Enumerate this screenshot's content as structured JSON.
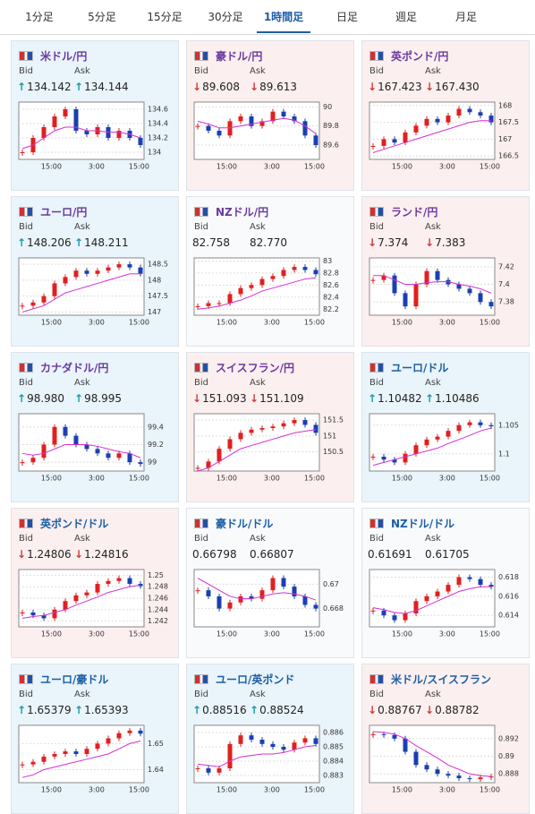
{
  "tabs": {
    "items": [
      "1分足",
      "5分足",
      "15分足",
      "30分足",
      "1時間足",
      "日足",
      "週足",
      "月足"
    ],
    "active": 4
  },
  "labels": {
    "bid": "Bid",
    "ask": "Ask"
  },
  "cards": [
    {
      "name": "米ドル/円",
      "title_color": "#6a3aa0",
      "direction": "up",
      "bid": "134.142",
      "ask": "134.144",
      "ylim": [
        133.9,
        134.7
      ],
      "yticks": [
        134,
        134.2,
        134.4,
        134.6
      ],
      "xticks": [
        "15:00",
        "3:00",
        "15:00"
      ],
      "closes": [
        134.0,
        134.2,
        134.35,
        134.5,
        134.6,
        134.3,
        134.25,
        134.35,
        134.2,
        134.3,
        134.2,
        134.1
      ],
      "ma": [
        134.05,
        134.1,
        134.2,
        134.3,
        134.35,
        134.35,
        134.3,
        134.3,
        134.28,
        134.28,
        134.25,
        134.2
      ]
    },
    {
      "name": "豪ドル/円",
      "title_color": "#6a3aa0",
      "direction": "down",
      "bid": "89.608",
      "ask": "89.613",
      "ylim": [
        89.45,
        90.05
      ],
      "yticks": [
        89.6,
        89.8,
        90
      ],
      "xticks": [
        "15:00",
        "3:00",
        "15:00"
      ],
      "closes": [
        89.8,
        89.75,
        89.7,
        89.85,
        89.9,
        89.8,
        89.85,
        89.95,
        89.9,
        89.85,
        89.7,
        89.6
      ],
      "ma": [
        89.85,
        89.82,
        89.78,
        89.78,
        89.8,
        89.82,
        89.84,
        89.86,
        89.88,
        89.86,
        89.8,
        89.72
      ]
    },
    {
      "name": "英ポンド/円",
      "title_color": "#6a3aa0",
      "direction": "down",
      "bid": "167.423",
      "ask": "167.430",
      "ylim": [
        166.4,
        168.1
      ],
      "yticks": [
        166.5,
        167,
        167.5,
        168
      ],
      "xticks": [
        "15:00",
        "3:00",
        "15:00"
      ],
      "closes": [
        166.8,
        167.0,
        166.9,
        167.2,
        167.4,
        167.6,
        167.5,
        167.7,
        167.9,
        167.8,
        167.7,
        167.5
      ],
      "ma": [
        166.6,
        166.7,
        166.8,
        166.9,
        167.0,
        167.1,
        167.2,
        167.3,
        167.4,
        167.5,
        167.55,
        167.55
      ]
    },
    {
      "name": "ユーロ/円",
      "title_color": "#6a3aa0",
      "direction": "up",
      "bid": "148.206",
      "ask": "148.211",
      "ylim": [
        146.9,
        148.7
      ],
      "yticks": [
        147,
        147.5,
        148,
        148.5
      ],
      "xticks": [
        "15:00",
        "3:00",
        "15:00"
      ],
      "closes": [
        147.2,
        147.3,
        147.5,
        147.9,
        148.1,
        148.3,
        148.2,
        148.3,
        148.4,
        148.5,
        148.4,
        148.2
      ],
      "ma": [
        147.0,
        147.1,
        147.2,
        147.4,
        147.6,
        147.7,
        147.8,
        147.9,
        148.0,
        148.1,
        148.2,
        148.2
      ]
    },
    {
      "name": "NZドル/円",
      "title_color": "#6a3aa0",
      "direction": null,
      "bid": "82.758",
      "ask": "82.770",
      "ylim": [
        82.1,
        83.05
      ],
      "yticks": [
        82.2,
        82.4,
        82.6,
        82.8,
        83
      ],
      "xticks": [
        "15:00",
        "3:00",
        "15:00"
      ],
      "closes": [
        82.25,
        82.3,
        82.3,
        82.45,
        82.55,
        82.6,
        82.7,
        82.75,
        82.85,
        82.9,
        82.85,
        82.78
      ],
      "ma": [
        82.2,
        82.22,
        82.25,
        82.3,
        82.35,
        82.42,
        82.5,
        82.55,
        82.6,
        82.65,
        82.7,
        82.72
      ]
    },
    {
      "name": "ランド/円",
      "title_color": "#6a3aa0",
      "direction": "down",
      "bid": "7.374",
      "ask": "7.383",
      "ylim": [
        7.365,
        7.43
      ],
      "yticks": [
        7.38,
        7.4,
        7.42
      ],
      "xticks": [
        "15:00",
        "3:00",
        "15:00"
      ],
      "closes": [
        7.405,
        7.41,
        7.39,
        7.375,
        7.4,
        7.415,
        7.405,
        7.4,
        7.395,
        7.39,
        7.38,
        7.375
      ],
      "ma": [
        7.41,
        7.41,
        7.405,
        7.4,
        7.4,
        7.402,
        7.403,
        7.403,
        7.4,
        7.398,
        7.395,
        7.39
      ]
    },
    {
      "name": "カナダドル/円",
      "title_color": "#6a3aa0",
      "direction": "up",
      "bid": "98.980",
      "ask": "98.995",
      "ylim": [
        98.9,
        99.55
      ],
      "yticks": [
        99,
        99.2,
        99.4
      ],
      "xticks": [
        "15:00",
        "3:00",
        "15:00"
      ],
      "closes": [
        99.0,
        99.05,
        99.2,
        99.4,
        99.3,
        99.2,
        99.15,
        99.1,
        99.05,
        99.1,
        99.0,
        98.98
      ],
      "ma": [
        99.1,
        99.08,
        99.1,
        99.15,
        99.2,
        99.2,
        99.2,
        99.18,
        99.15,
        99.12,
        99.1,
        99.05
      ]
    },
    {
      "name": "スイスフラン/円",
      "title_color": "#6a3aa0",
      "direction": "down",
      "bid": "151.093",
      "ask": "151.109",
      "ylim": [
        149.9,
        151.7
      ],
      "yticks": [
        150.5,
        151,
        151.5
      ],
      "xticks": [
        "15:00",
        "3:00",
        "15:00"
      ],
      "closes": [
        150.0,
        150.2,
        150.6,
        150.9,
        151.1,
        151.2,
        151.25,
        151.3,
        151.4,
        151.5,
        151.35,
        151.1
      ],
      "ma": [
        149.9,
        150.0,
        150.2,
        150.4,
        150.6,
        150.7,
        150.8,
        150.9,
        151.0,
        151.1,
        151.15,
        151.2
      ]
    },
    {
      "name": "ユーロ/ドル",
      "title_color": "#1d5fa6",
      "direction": "up",
      "bid": "1.10482",
      "ask": "1.10486",
      "ylim": [
        1.097,
        1.107
      ],
      "yticks": [
        1.1,
        1.105
      ],
      "xticks": [
        "15:00",
        "3:00",
        "15:00"
      ],
      "closes": [
        1.0995,
        1.099,
        1.0985,
        1.1,
        1.1015,
        1.1025,
        1.103,
        1.104,
        1.105,
        1.1055,
        1.105,
        1.1048
      ],
      "ma": [
        1.098,
        1.0985,
        1.099,
        1.0995,
        1.1,
        1.1005,
        1.101,
        1.1018,
        1.1025,
        1.1032,
        1.104,
        1.1045
      ]
    },
    {
      "name": "英ポンド/ドル",
      "title_color": "#1d5fa6",
      "direction": "down",
      "bid": "1.24806",
      "ask": "1.24816",
      "ylim": [
        1.241,
        1.251
      ],
      "yticks": [
        1.242,
        1.244,
        1.246,
        1.248,
        1.25
      ],
      "xticks": [
        "15:00",
        "3:00",
        "15:00"
      ],
      "closes": [
        1.2435,
        1.243,
        1.2425,
        1.244,
        1.2455,
        1.2465,
        1.247,
        1.2485,
        1.249,
        1.2495,
        1.2485,
        1.2481
      ],
      "ma": [
        1.2425,
        1.2428,
        1.243,
        1.2435,
        1.244,
        1.2448,
        1.2455,
        1.2462,
        1.247,
        1.2475,
        1.248,
        1.2483
      ]
    },
    {
      "name": "豪ドル/ドル",
      "title_color": "#1d5fa6",
      "direction": null,
      "bid": "0.66798",
      "ask": "0.66807",
      "ylim": [
        0.6665,
        0.6712
      ],
      "yticks": [
        0.668,
        0.67
      ],
      "xticks": [
        "15:00",
        "3:00",
        "15:00"
      ],
      "closes": [
        0.6695,
        0.669,
        0.668,
        0.6685,
        0.669,
        0.6688,
        0.6695,
        0.6705,
        0.6698,
        0.669,
        0.6683,
        0.668
      ],
      "ma": [
        0.6705,
        0.67,
        0.6695,
        0.669,
        0.6688,
        0.6688,
        0.669,
        0.6692,
        0.6693,
        0.6692,
        0.669,
        0.6687
      ]
    },
    {
      "name": "NZドル/ドル",
      "title_color": "#1d5fa6",
      "direction": null,
      "bid": "0.61691",
      "ask": "0.61705",
      "ylim": [
        0.6128,
        0.6188
      ],
      "yticks": [
        0.614,
        0.616,
        0.618
      ],
      "xticks": [
        "15:00",
        "3:00",
        "15:00"
      ],
      "closes": [
        0.6145,
        0.614,
        0.6135,
        0.6142,
        0.6155,
        0.616,
        0.6165,
        0.6172,
        0.618,
        0.6178,
        0.6172,
        0.617
      ],
      "ma": [
        0.6148,
        0.6146,
        0.6143,
        0.6142,
        0.6145,
        0.615,
        0.6155,
        0.616,
        0.6165,
        0.6168,
        0.617,
        0.617
      ]
    },
    {
      "name": "ユーロ/豪ドル",
      "title_color": "#1d5fa6",
      "direction": "up",
      "bid": "1.65379",
      "ask": "1.65393",
      "ylim": [
        1.635,
        1.657
      ],
      "yticks": [
        1.64,
        1.65
      ],
      "xticks": [
        "15:00",
        "3:00",
        "15:00"
      ],
      "closes": [
        1.642,
        1.643,
        1.645,
        1.646,
        1.647,
        1.646,
        1.648,
        1.65,
        1.652,
        1.654,
        1.655,
        1.6538
      ],
      "ma": [
        1.637,
        1.638,
        1.64,
        1.641,
        1.642,
        1.643,
        1.644,
        1.645,
        1.646,
        1.648,
        1.65,
        1.651
      ]
    },
    {
      "name": "ユーロ/英ポンド",
      "title_color": "#1d5fa6",
      "direction": "up",
      "bid": "0.88516",
      "ask": "0.88524",
      "ylim": [
        0.8825,
        0.8865
      ],
      "yticks": [
        0.883,
        0.884,
        0.885,
        0.886
      ],
      "xticks": [
        "15:00",
        "3:00",
        "15:00"
      ],
      "closes": [
        0.8835,
        0.8832,
        0.8835,
        0.8852,
        0.8858,
        0.8855,
        0.8852,
        0.885,
        0.8848,
        0.8853,
        0.8856,
        0.8852
      ],
      "ma": [
        0.8838,
        0.8837,
        0.8836,
        0.884,
        0.8843,
        0.8844,
        0.8845,
        0.8845,
        0.8846,
        0.8848,
        0.885,
        0.8851
      ]
    },
    {
      "name": "米ドル/スイスフラン",
      "title_color": "#1d5fa6",
      "direction": "down",
      "bid": "0.88767",
      "ask": "0.88782",
      "ylim": [
        0.887,
        0.8935
      ],
      "yticks": [
        0.888,
        0.89,
        0.892
      ],
      "xticks": [
        "15:00",
        "3:00",
        "15:00"
      ],
      "closes": [
        0.8925,
        0.8924,
        0.892,
        0.8905,
        0.889,
        0.8885,
        0.888,
        0.8878,
        0.8875,
        0.8874,
        0.8876,
        0.8877
      ],
      "ma": [
        0.8928,
        0.8927,
        0.8925,
        0.892,
        0.8912,
        0.8905,
        0.8898,
        0.889,
        0.8885,
        0.888,
        0.8878,
        0.8877
      ]
    }
  ]
}
